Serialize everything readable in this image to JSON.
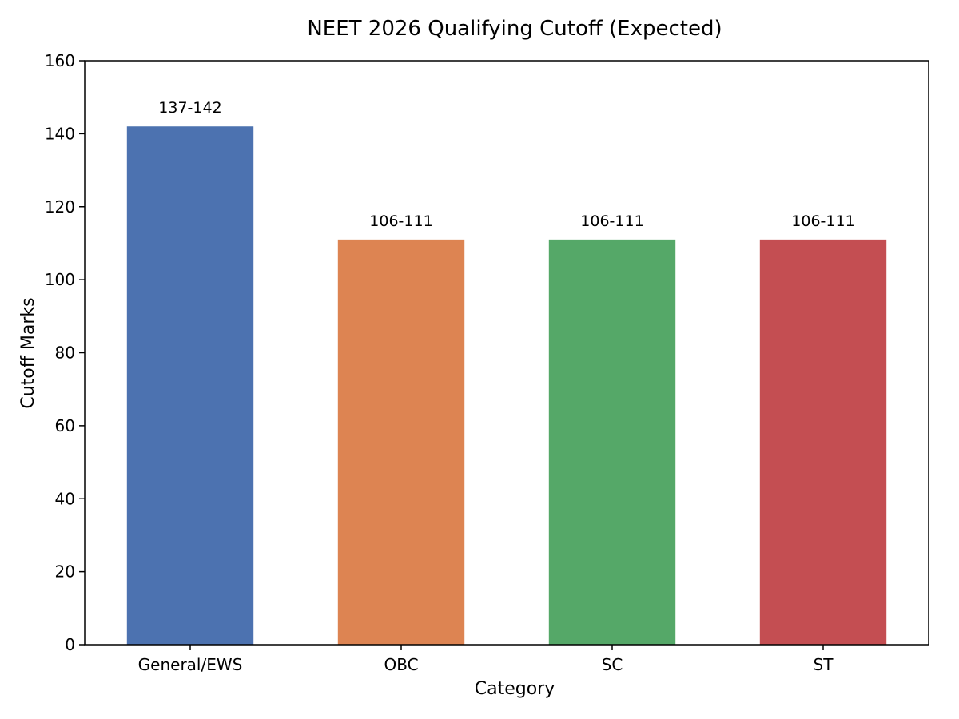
{
  "chart_data": {
    "type": "bar",
    "title": "NEET 2026 Qualifying Cutoff (Expected)",
    "xlabel": "Category",
    "ylabel": "Cutoff Marks",
    "categories": [
      "General/EWS",
      "OBC",
      "SC",
      "ST"
    ],
    "values": [
      142,
      111,
      111,
      111
    ],
    "data_labels": [
      "137-142",
      "106-111",
      "106-111",
      "106-111"
    ],
    "colors": [
      "#4C72B0",
      "#DD8452",
      "#55A868",
      "#C44E52"
    ],
    "ylim": [
      0,
      160
    ],
    "yticks": [
      0,
      20,
      40,
      60,
      80,
      100,
      120,
      140,
      160
    ],
    "grid": false,
    "legend": "none"
  }
}
